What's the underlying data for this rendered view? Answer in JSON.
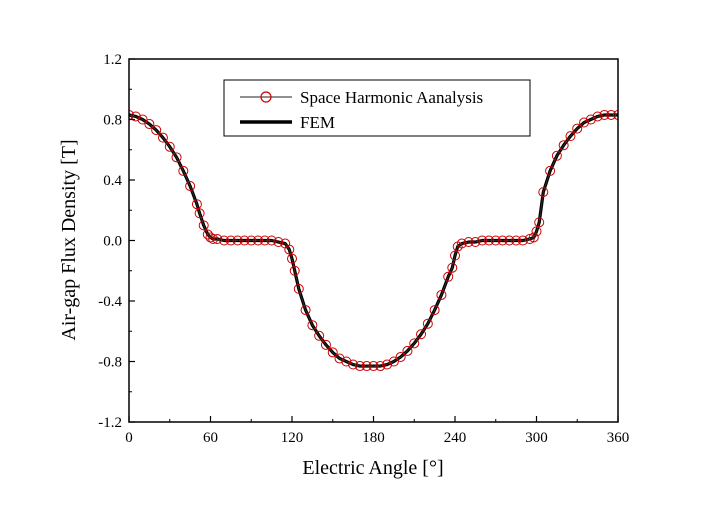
{
  "chart_data": {
    "type": "line",
    "title": "",
    "xlabel": "Electric Angle [°]",
    "ylabel": "Air-gap Flux Density [T]",
    "xlim": [
      0,
      360
    ],
    "ylim": [
      -1.2,
      1.2
    ],
    "xticks": [
      0,
      60,
      120,
      180,
      240,
      300,
      360
    ],
    "yticks": [
      -1.2,
      -0.8,
      -0.4,
      0.0,
      0.4,
      0.8,
      1.2
    ],
    "xtick_labels": [
      "0",
      "60",
      "120",
      "180",
      "240",
      "300",
      "360"
    ],
    "ytick_labels": [
      "-1.2",
      "-0.8",
      "-0.4",
      "0.0",
      "0.4",
      "0.8",
      "1.2"
    ],
    "grid": false,
    "legend_position": "top-center",
    "series": [
      {
        "name": "Space Harmonic Aanalysis",
        "style": "line-with-open-circles",
        "color": "#cc0000",
        "x": [
          0,
          5,
          10,
          15,
          20,
          25,
          30,
          35,
          40,
          45,
          50,
          52,
          55,
          58,
          60,
          62,
          65,
          70,
          75,
          80,
          85,
          90,
          95,
          100,
          105,
          110,
          115,
          118,
          120,
          122,
          125,
          130,
          135,
          140,
          145,
          150,
          155,
          160,
          165,
          170,
          175,
          180,
          185,
          190,
          195,
          200,
          205,
          210,
          215,
          220,
          225,
          230,
          235,
          238,
          240,
          242,
          245,
          250,
          255,
          260,
          265,
          270,
          275,
          280,
          285,
          290,
          295,
          298,
          300,
          302,
          305,
          310,
          315,
          320,
          325,
          330,
          335,
          340,
          345,
          350,
          355,
          360
        ],
        "y": [
          0.83,
          0.82,
          0.8,
          0.77,
          0.73,
          0.68,
          0.62,
          0.55,
          0.46,
          0.36,
          0.24,
          0.18,
          0.1,
          0.04,
          0.02,
          0.01,
          0.01,
          0.0,
          0.0,
          0.0,
          0.0,
          0.0,
          0.0,
          0.0,
          0.0,
          -0.01,
          -0.02,
          -0.06,
          -0.12,
          -0.2,
          -0.32,
          -0.46,
          -0.56,
          -0.63,
          -0.69,
          -0.74,
          -0.78,
          -0.8,
          -0.82,
          -0.83,
          -0.83,
          -0.83,
          -0.83,
          -0.82,
          -0.8,
          -0.77,
          -0.73,
          -0.68,
          -0.62,
          -0.55,
          -0.46,
          -0.36,
          -0.24,
          -0.18,
          -0.1,
          -0.04,
          -0.02,
          -0.01,
          -0.01,
          0.0,
          0.0,
          0.0,
          0.0,
          0.0,
          0.0,
          0.0,
          0.01,
          0.02,
          0.06,
          0.12,
          0.32,
          0.46,
          0.56,
          0.63,
          0.69,
          0.74,
          0.78,
          0.8,
          0.82,
          0.83,
          0.83,
          0.83
        ]
      },
      {
        "name": "FEM",
        "style": "thick-line",
        "color": "#000000",
        "x": [
          0,
          5,
          10,
          15,
          20,
          25,
          30,
          35,
          40,
          45,
          50,
          52,
          55,
          58,
          60,
          62,
          65,
          70,
          75,
          80,
          85,
          90,
          95,
          100,
          105,
          110,
          115,
          118,
          120,
          122,
          125,
          130,
          135,
          140,
          145,
          150,
          155,
          160,
          165,
          170,
          175,
          180,
          185,
          190,
          195,
          200,
          205,
          210,
          215,
          220,
          225,
          230,
          235,
          238,
          240,
          242,
          245,
          250,
          255,
          260,
          265,
          270,
          275,
          280,
          285,
          290,
          295,
          298,
          300,
          302,
          305,
          310,
          315,
          320,
          325,
          330,
          335,
          340,
          345,
          350,
          355,
          360
        ],
        "y": [
          0.83,
          0.82,
          0.8,
          0.77,
          0.73,
          0.68,
          0.62,
          0.55,
          0.46,
          0.36,
          0.24,
          0.18,
          0.1,
          0.04,
          0.02,
          0.01,
          0.01,
          0.0,
          0.0,
          0.0,
          0.0,
          0.0,
          0.0,
          0.0,
          0.0,
          -0.01,
          -0.02,
          -0.06,
          -0.12,
          -0.2,
          -0.32,
          -0.46,
          -0.56,
          -0.63,
          -0.69,
          -0.74,
          -0.78,
          -0.8,
          -0.82,
          -0.83,
          -0.83,
          -0.83,
          -0.83,
          -0.82,
          -0.8,
          -0.77,
          -0.73,
          -0.68,
          -0.62,
          -0.55,
          -0.46,
          -0.36,
          -0.24,
          -0.18,
          -0.1,
          -0.04,
          -0.02,
          -0.01,
          -0.01,
          0.0,
          0.0,
          0.0,
          0.0,
          0.0,
          0.0,
          0.0,
          0.01,
          0.02,
          0.06,
          0.12,
          0.32,
          0.46,
          0.56,
          0.63,
          0.69,
          0.74,
          0.78,
          0.8,
          0.82,
          0.83,
          0.83,
          0.83
        ]
      }
    ]
  }
}
